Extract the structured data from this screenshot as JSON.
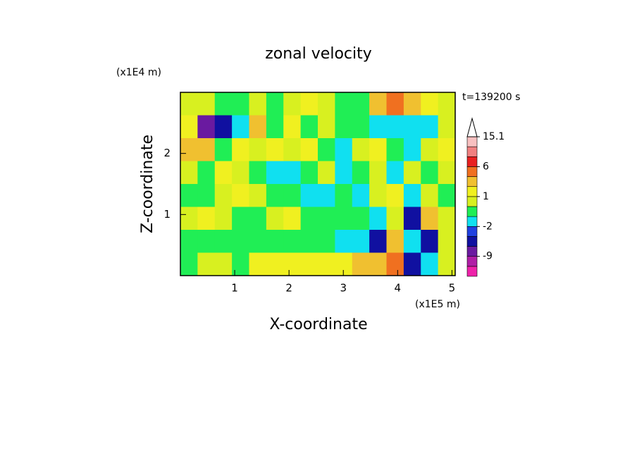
{
  "chart_data": {
    "type": "contour",
    "title": "zonal velocity",
    "xlabel": "X-coordinate",
    "ylabel": "Z-coordinate",
    "xunit": "(x1E5 m)",
    "yunit": "(x1E4 m)",
    "annotation": "t=139200 s",
    "xlim": [
      0,
      5.06
    ],
    "ylim": [
      0,
      3
    ],
    "xticks": [
      1,
      2,
      3,
      4,
      5
    ],
    "yticks": [
      1,
      2
    ],
    "levels": [
      -15,
      -12,
      -9,
      -6,
      -4,
      -2,
      -1,
      0,
      1,
      2,
      4,
      6,
      9,
      12,
      15.1
    ],
    "colors": [
      "#ee22aa",
      "#b01ea6",
      "#6a1aa0",
      "#1010a0",
      "#2040e0",
      "#10e0f0",
      "#20ee55",
      "#d8f020",
      "#f0f020",
      "#f0c030",
      "#f07020",
      "#e82020",
      "#f08080",
      "#f8c0c0"
    ],
    "cbticks": [
      15.1,
      6,
      1,
      -2,
      -9
    ],
    "z": [
      [
        0.5,
        0.5,
        -0.5,
        -0.5,
        0.5,
        -0.5,
        0.5,
        1.5,
        0.5,
        -0.5,
        -0.5,
        3,
        4,
        3,
        1.5,
        0.5
      ],
      [
        1.5,
        -7,
        -5,
        -1.5,
        2,
        -0.5,
        1,
        -0.5,
        0.5,
        -1,
        -0.5,
        -1.5,
        -1.5,
        -1.5,
        -1.5,
        0.5
      ],
      [
        3,
        3,
        -0.5,
        1.5,
        0.5,
        1.5,
        0.5,
        1.5,
        -0.5,
        -1.5,
        0.5,
        1.5,
        -0.5,
        -1.5,
        0.5,
        1.5
      ],
      [
        0.5,
        -0.5,
        1.5,
        0.5,
        -0.5,
        -1.5,
        -1.5,
        -0.5,
        0.5,
        -1.5,
        -0.5,
        0.5,
        -1.5,
        0.5,
        -0.5,
        0.5
      ],
      [
        -0.5,
        -0.5,
        0.5,
        1.5,
        0.5,
        -0.5,
        -0.5,
        -1.5,
        -1.5,
        -0.5,
        -1.5,
        0.5,
        1.5,
        -1.5,
        0.5,
        -0.5
      ],
      [
        0.5,
        1.5,
        0.5,
        -0.5,
        -0.5,
        0.5,
        1.5,
        -0.5,
        -0.5,
        -0.5,
        -0.5,
        -1.5,
        0.5,
        -5,
        2,
        0.5
      ],
      [
        -0.5,
        -0.5,
        -0.5,
        -0.5,
        -0.5,
        -0.5,
        -0.5,
        -0.5,
        -0.5,
        -1.5,
        -1.5,
        -5,
        3,
        -1.5,
        -5,
        0.5
      ],
      [
        -0.5,
        0.5,
        0.5,
        -0.5,
        1.5,
        1.5,
        1.5,
        1.5,
        1.5,
        1.5,
        2,
        3,
        4,
        -6,
        -1.5,
        0.5
      ]
    ]
  }
}
